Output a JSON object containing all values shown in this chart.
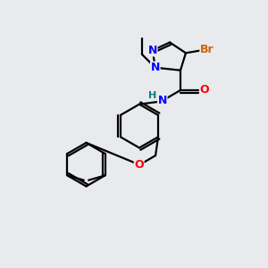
{
  "background_color": "#e8eaed",
  "atoms": {
    "C": "#000000",
    "N": "#0000ff",
    "O": "#ff0000",
    "Br": "#cc6600",
    "H": "#008080"
  },
  "bond_color": "#000000",
  "bond_width": 1.6,
  "figsize": [
    3.0,
    3.0
  ],
  "dpi": 100
}
